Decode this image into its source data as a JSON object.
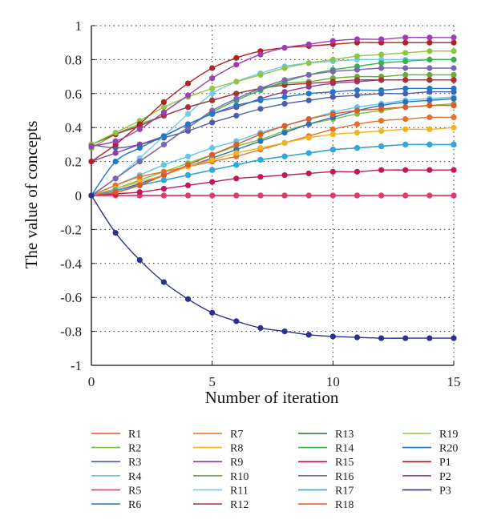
{
  "chart_data": {
    "type": "line",
    "title": "",
    "xlabel": "Number of iteration",
    "ylabel": "The value of concepts",
    "xlim": [
      0,
      15
    ],
    "ylim": [
      -1,
      1
    ],
    "xticks": [
      0,
      5,
      10,
      15
    ],
    "yticks": [
      1,
      0.8,
      0.6,
      0.4,
      0.2,
      0,
      -0.2,
      -0.4,
      -0.6,
      -0.8,
      -1
    ],
    "x_tick_labels": [
      "0",
      "5",
      "10",
      "15"
    ],
    "y_tick_labels": [
      "1",
      "0.8",
      "0.6",
      "0.4",
      "0.2",
      "0",
      "-0.2",
      "-0.4",
      "-0.6",
      "-0.8",
      "-1"
    ],
    "grid": "dotted",
    "legend_position": "bottom",
    "legend_columns": 4,
    "x": [
      0,
      1,
      2,
      3,
      4,
      5,
      6,
      7,
      8,
      9,
      10,
      11,
      12,
      13,
      14,
      15
    ],
    "series": [
      {
        "name": "R1",
        "color": "#e8502d",
        "values": [
          0,
          0.0,
          0.0,
          0.0,
          0.0,
          0.0,
          0.0,
          0.0,
          0.0,
          0.0,
          0.0,
          0.0,
          0.0,
          0.0,
          0.0,
          0.0
        ]
      },
      {
        "name": "R2",
        "color": "#7cc242",
        "values": [
          0,
          0.04,
          0.09,
          0.14,
          0.19,
          0.24,
          0.29,
          0.33,
          0.38,
          0.42,
          0.45,
          0.48,
          0.5,
          0.52,
          0.53,
          0.54
        ]
      },
      {
        "name": "R3",
        "color": "#4a5fa8",
        "values": [
          0.3,
          0.28,
          0.3,
          0.34,
          0.38,
          0.43,
          0.47,
          0.51,
          0.54,
          0.56,
          0.58,
          0.59,
          0.6,
          0.6,
          0.61,
          0.61
        ]
      },
      {
        "name": "R4",
        "color": "#5ec6e8",
        "values": [
          0,
          0.06,
          0.12,
          0.18,
          0.23,
          0.28,
          0.32,
          0.37,
          0.41,
          0.45,
          0.49,
          0.52,
          0.54,
          0.56,
          0.57,
          0.58
        ]
      },
      {
        "name": "R5",
        "color": "#e23a6e",
        "values": [
          0,
          0.0,
          0.0,
          0.0,
          0.0,
          0.0,
          0.0,
          0.0,
          0.0,
          0.0,
          0.0,
          0.0,
          0.0,
          0.0,
          0.0,
          0.0
        ]
      },
      {
        "name": "R6",
        "color": "#2f6fb5",
        "values": [
          0,
          0.03,
          0.07,
          0.12,
          0.17,
          0.22,
          0.27,
          0.32,
          0.37,
          0.42,
          0.46,
          0.5,
          0.53,
          0.55,
          0.56,
          0.57
        ]
      },
      {
        "name": "R7",
        "color": "#e8702d",
        "values": [
          0,
          0.06,
          0.11,
          0.14,
          0.17,
          0.2,
          0.23,
          0.27,
          0.31,
          0.35,
          0.39,
          0.42,
          0.44,
          0.45,
          0.46,
          0.46
        ]
      },
      {
        "name": "R8",
        "color": "#f0b323",
        "values": [
          0,
          0.04,
          0.08,
          0.12,
          0.17,
          0.21,
          0.25,
          0.28,
          0.31,
          0.34,
          0.36,
          0.37,
          0.38,
          0.39,
          0.39,
          0.4
        ]
      },
      {
        "name": "R9",
        "color": "#8a3fa0",
        "values": [
          0.2,
          0.25,
          0.3,
          0.35,
          0.42,
          0.48,
          0.52,
          0.57,
          0.61,
          0.64,
          0.66,
          0.67,
          0.68,
          0.68,
          0.68,
          0.68
        ]
      },
      {
        "name": "R10",
        "color": "#6aaa3a",
        "values": [
          0.28,
          0.36,
          0.42,
          0.47,
          0.52,
          0.56,
          0.6,
          0.63,
          0.66,
          0.67,
          0.69,
          0.7,
          0.7,
          0.71,
          0.71,
          0.71
        ]
      },
      {
        "name": "R11",
        "color": "#6fcbef",
        "values": [
          0,
          0.1,
          0.22,
          0.35,
          0.48,
          0.6,
          0.67,
          0.72,
          0.76,
          0.78,
          0.79,
          0.8,
          0.8,
          0.8,
          0.8,
          0.8
        ]
      },
      {
        "name": "R12",
        "color": "#a8323a",
        "values": [
          0.3,
          0.36,
          0.41,
          0.47,
          0.52,
          0.56,
          0.6,
          0.63,
          0.65,
          0.66,
          0.67,
          0.68,
          0.68,
          0.68,
          0.68,
          0.68
        ]
      },
      {
        "name": "R13",
        "color": "#2e6f3a",
        "values": [
          0,
          0.03,
          0.06,
          0.09,
          0.12,
          0.15,
          0.18,
          0.21,
          0.23,
          0.25,
          0.27,
          0.28,
          0.29,
          0.3,
          0.3,
          0.3
        ]
      },
      {
        "name": "R14",
        "color": "#37b34a",
        "values": [
          0,
          0.1,
          0.2,
          0.3,
          0.4,
          0.49,
          0.56,
          0.62,
          0.67,
          0.71,
          0.74,
          0.76,
          0.78,
          0.79,
          0.8,
          0.8
        ]
      },
      {
        "name": "R15",
        "color": "#c2185b",
        "values": [
          0,
          0.01,
          0.02,
          0.04,
          0.06,
          0.08,
          0.1,
          0.11,
          0.12,
          0.13,
          0.14,
          0.14,
          0.15,
          0.15,
          0.15,
          0.15
        ]
      },
      {
        "name": "R16",
        "color": "#7b68b5",
        "values": [
          0,
          0.1,
          0.2,
          0.3,
          0.4,
          0.5,
          0.57,
          0.63,
          0.68,
          0.71,
          0.73,
          0.74,
          0.75,
          0.75,
          0.75,
          0.75
        ]
      },
      {
        "name": "R17",
        "color": "#2fa7e0",
        "values": [
          0,
          0.03,
          0.06,
          0.09,
          0.12,
          0.15,
          0.18,
          0.21,
          0.23,
          0.25,
          0.27,
          0.28,
          0.29,
          0.3,
          0.3,
          0.3
        ]
      },
      {
        "name": "R18",
        "color": "#e05a28",
        "values": [
          0,
          0.02,
          0.06,
          0.12,
          0.18,
          0.24,
          0.3,
          0.36,
          0.41,
          0.45,
          0.48,
          0.5,
          0.51,
          0.52,
          0.53,
          0.53
        ]
      },
      {
        "name": "R19",
        "color": "#8dc63f",
        "values": [
          0.3,
          0.37,
          0.44,
          0.52,
          0.58,
          0.63,
          0.67,
          0.71,
          0.75,
          0.78,
          0.8,
          0.82,
          0.83,
          0.84,
          0.85,
          0.85
        ]
      },
      {
        "name": "R20",
        "color": "#1f78c8",
        "values": [
          0,
          0.2,
          0.28,
          0.35,
          0.42,
          0.48,
          0.53,
          0.56,
          0.58,
          0.6,
          0.61,
          0.62,
          0.62,
          0.63,
          0.63,
          0.63
        ]
      },
      {
        "name": "P1",
        "color": "#b22222",
        "values": [
          0.2,
          0.3,
          0.42,
          0.55,
          0.66,
          0.75,
          0.81,
          0.85,
          0.87,
          0.88,
          0.89,
          0.9,
          0.9,
          0.9,
          0.9,
          0.9
        ]
      },
      {
        "name": "P2",
        "color": "#9b3fb5",
        "values": [
          0.29,
          0.32,
          0.39,
          0.49,
          0.59,
          0.69,
          0.77,
          0.83,
          0.87,
          0.89,
          0.91,
          0.92,
          0.92,
          0.93,
          0.93,
          0.93
        ]
      },
      {
        "name": "P3",
        "color": "#2b2f8f",
        "values": [
          0,
          -0.22,
          -0.38,
          -0.51,
          -0.61,
          -0.69,
          -0.74,
          -0.78,
          -0.8,
          -0.82,
          -0.83,
          -0.835,
          -0.84,
          -0.84,
          -0.84,
          -0.84
        ]
      }
    ]
  }
}
